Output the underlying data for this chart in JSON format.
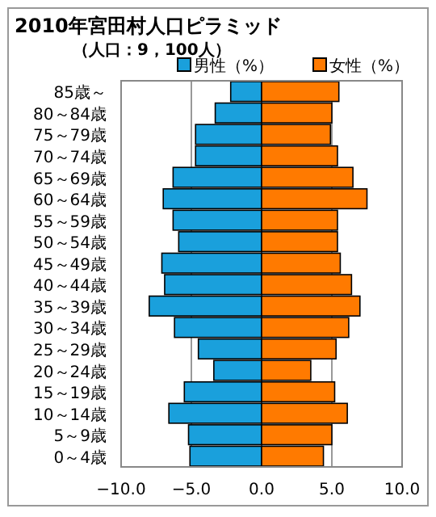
{
  "chart_data": {
    "type": "bar",
    "orientation": "horizontal",
    "stacked": true,
    "title": "2010年宮田村人口ピラミッド",
    "subtitle": "（人口：9，100人）",
    "categories": [
      "85歳～",
      "80～84歳",
      "75～79歳",
      "70～74歳",
      "65～69歳",
      "60～64歳",
      "55～59歳",
      "50～54歳",
      "45～49歳",
      "40～44歳",
      "35～39歳",
      "30～34歳",
      "25～29歳",
      "20～24歳",
      "15～19歳",
      "10～14歳",
      "5～9歳",
      "0～4歳"
    ],
    "series": [
      {
        "name": "男性（%）",
        "color": "#1aa0dc",
        "values": [
          -2.2,
          -3.3,
          -4.7,
          -4.7,
          -6.3,
          -7.0,
          -6.3,
          -5.9,
          -7.1,
          -6.9,
          -8.0,
          -6.2,
          -4.5,
          -3.4,
          -5.5,
          -6.6,
          -5.2,
          -5.1
        ]
      },
      {
        "name": "女性（%）",
        "color": "#ff7a00",
        "values": [
          5.5,
          5.0,
          4.9,
          5.4,
          6.5,
          7.5,
          5.4,
          5.4,
          5.6,
          6.4,
          7.0,
          6.2,
          5.3,
          3.5,
          5.2,
          6.1,
          5.0,
          4.4
        ]
      }
    ],
    "xlim": [
      -10,
      10
    ],
    "xticks": [
      {
        "value": -10,
        "label": "−10.0"
      },
      {
        "value": -5,
        "label": "−5.0"
      },
      {
        "value": 0,
        "label": "0.0"
      },
      {
        "value": 5,
        "label": "5.0"
      },
      {
        "value": 10,
        "label": "10.0"
      }
    ],
    "grid": "x",
    "legend": "top right"
  }
}
